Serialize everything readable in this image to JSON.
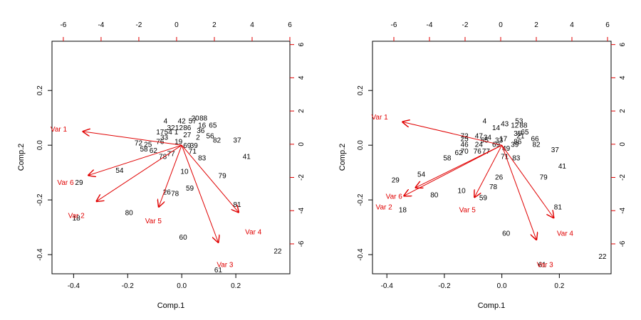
{
  "colors": {
    "axis": "#000000",
    "points": "#000000",
    "vectors": "#e00000"
  },
  "chart_data": [
    {
      "type": "scatter",
      "subtype": "biplot",
      "xlabel": "Comp.1",
      "ylabel": "Comp.2",
      "xlim": [
        -0.48,
        0.4
      ],
      "ylim": [
        -0.47,
        0.38
      ],
      "xticks": [
        -0.4,
        -0.2,
        0.0,
        0.2
      ],
      "yticks": [
        -0.4,
        -0.2,
        0.0,
        0.2
      ],
      "top_axis": {
        "ticks": [
          -6,
          -4,
          -2,
          0,
          2,
          4,
          6
        ],
        "lim": [
          -6.6,
          6.0
        ]
      },
      "right_axis": {
        "ticks": [
          -6,
          -4,
          -2,
          0,
          2,
          4,
          6
        ],
        "lim": [
          -7.8,
          6.2
        ]
      },
      "points": [
        {
          "label": "4",
          "x": -0.06,
          "y": 0.09
        },
        {
          "label": "42",
          "x": 0.0,
          "y": 0.09
        },
        {
          "label": "57",
          "x": 0.04,
          "y": 0.09
        },
        {
          "label": "20",
          "x": 0.05,
          "y": 0.1
        },
        {
          "label": "88",
          "x": 0.08,
          "y": 0.1
        },
        {
          "label": "16",
          "x": 0.075,
          "y": 0.075
        },
        {
          "label": "65",
          "x": 0.115,
          "y": 0.075
        },
        {
          "label": "32",
          "x": -0.04,
          "y": 0.065
        },
        {
          "label": "12",
          "x": -0.01,
          "y": 0.065
        },
        {
          "label": "86",
          "x": 0.02,
          "y": 0.065
        },
        {
          "label": "36",
          "x": 0.07,
          "y": 0.055
        },
        {
          "label": "17",
          "x": -0.08,
          "y": 0.05
        },
        {
          "label": "54",
          "x": -0.05,
          "y": 0.05
        },
        {
          "label": "1",
          "x": -0.02,
          "y": 0.05
        },
        {
          "label": "27",
          "x": 0.02,
          "y": 0.04
        },
        {
          "label": "56",
          "x": 0.105,
          "y": 0.035
        },
        {
          "label": "2",
          "x": 0.06,
          "y": 0.03
        },
        {
          "label": "33",
          "x": -0.065,
          "y": 0.03
        },
        {
          "label": "82",
          "x": 0.13,
          "y": 0.02
        },
        {
          "label": "37",
          "x": 0.205,
          "y": 0.02
        },
        {
          "label": "72",
          "x": -0.16,
          "y": 0.01
        },
        {
          "label": "25",
          "x": -0.125,
          "y": 0.005
        },
        {
          "label": "76",
          "x": -0.08,
          "y": 0.015
        },
        {
          "label": "19",
          "x": -0.012,
          "y": 0.015
        },
        {
          "label": "69",
          "x": 0.02,
          "y": 0.0
        },
        {
          "label": "39",
          "x": 0.045,
          "y": 0.0
        },
        {
          "label": "58",
          "x": -0.14,
          "y": -0.012
        },
        {
          "label": "62",
          "x": -0.105,
          "y": -0.018
        },
        {
          "label": "71",
          "x": 0.04,
          "y": -0.02
        },
        {
          "label": "78",
          "x": -0.07,
          "y": -0.04
        },
        {
          "label": "77",
          "x": -0.04,
          "y": -0.03
        },
        {
          "label": "41",
          "x": 0.24,
          "y": -0.04
        },
        {
          "label": "83",
          "x": 0.075,
          "y": -0.045
        },
        {
          "label": "54",
          "x": -0.23,
          "y": -0.09
        },
        {
          "label": "10",
          "x": 0.01,
          "y": -0.095
        },
        {
          "label": "79",
          "x": 0.15,
          "y": -0.11
        },
        {
          "label": "29",
          "x": -0.38,
          "y": -0.135
        },
        {
          "label": "59",
          "x": 0.03,
          "y": -0.155
        },
        {
          "label": "26",
          "x": -0.055,
          "y": -0.17
        },
        {
          "label": "78",
          "x": -0.025,
          "y": -0.175
        },
        {
          "label": "81",
          "x": 0.205,
          "y": -0.215
        },
        {
          "label": "80",
          "x": -0.195,
          "y": -0.245
        },
        {
          "label": "18",
          "x": -0.39,
          "y": -0.265
        },
        {
          "label": "60",
          "x": 0.005,
          "y": -0.335
        },
        {
          "label": "22",
          "x": 0.355,
          "y": -0.385
        },
        {
          "label": "61",
          "x": 0.135,
          "y": -0.455
        }
      ],
      "vectors": [
        {
          "label": "Var 1",
          "x": -0.365,
          "y": 0.05,
          "label_x": -0.455,
          "label_y": 0.06
        },
        {
          "label": "Var 2",
          "x": -0.315,
          "y": -0.205,
          "label_x": -0.39,
          "label_y": -0.255
        },
        {
          "label": "Var 3",
          "x": 0.135,
          "y": -0.355,
          "label_x": 0.16,
          "label_y": -0.435
        },
        {
          "label": "Var 4",
          "x": 0.21,
          "y": -0.245,
          "label_x": 0.265,
          "label_y": -0.315
        },
        {
          "label": "Var 5",
          "x": -0.085,
          "y": -0.225,
          "label_x": -0.105,
          "label_y": -0.275
        },
        {
          "label": "Var 6",
          "x": -0.345,
          "y": -0.11,
          "label_x": -0.43,
          "label_y": -0.135
        }
      ]
    },
    {
      "type": "scatter",
      "subtype": "biplot",
      "xlabel": "Comp.1",
      "ylabel": "Comp.2",
      "xlim": [
        -0.45,
        0.38
      ],
      "ylim": [
        -0.47,
        0.38
      ],
      "xticks": [
        -0.4,
        -0.2,
        0.0,
        0.2
      ],
      "yticks": [
        -0.4,
        -0.2,
        0.0,
        0.2
      ],
      "top_axis": {
        "ticks": [
          -6,
          -4,
          -2,
          0,
          2,
          4,
          6
        ],
        "lim": [
          -7.2,
          6.2
        ]
      },
      "right_axis": {
        "ticks": [
          -6,
          -4,
          -2,
          0,
          2,
          4,
          6
        ],
        "lim": [
          -7.8,
          6.2
        ]
      },
      "points": [
        {
          "label": "4",
          "x": -0.06,
          "y": 0.09
        },
        {
          "label": "53",
          "x": 0.06,
          "y": 0.09
        },
        {
          "label": "43",
          "x": 0.01,
          "y": 0.08
        },
        {
          "label": "12",
          "x": 0.045,
          "y": 0.075
        },
        {
          "label": "88",
          "x": 0.075,
          "y": 0.075
        },
        {
          "label": "14",
          "x": -0.02,
          "y": 0.065
        },
        {
          "label": "65",
          "x": 0.08,
          "y": 0.05
        },
        {
          "label": "35",
          "x": 0.055,
          "y": 0.045
        },
        {
          "label": "72",
          "x": -0.13,
          "y": 0.035
        },
        {
          "label": "47",
          "x": -0.08,
          "y": 0.035
        },
        {
          "label": "21",
          "x": 0.065,
          "y": 0.035
        },
        {
          "label": "25",
          "x": -0.13,
          "y": 0.025
        },
        {
          "label": "34",
          "x": -0.05,
          "y": 0.03
        },
        {
          "label": "17",
          "x": 0.005,
          "y": 0.025
        },
        {
          "label": "66",
          "x": 0.115,
          "y": 0.025
        },
        {
          "label": "55",
          "x": -0.06,
          "y": 0.02
        },
        {
          "label": "33",
          "x": -0.01,
          "y": 0.02
        },
        {
          "label": "86",
          "x": 0.055,
          "y": 0.015
        },
        {
          "label": "46",
          "x": -0.13,
          "y": 0.005
        },
        {
          "label": "24",
          "x": -0.08,
          "y": 0.005
        },
        {
          "label": "82",
          "x": 0.12,
          "y": 0.005
        },
        {
          "label": "69",
          "x": -0.02,
          "y": 0.005
        },
        {
          "label": "39",
          "x": 0.045,
          "y": 0.005
        },
        {
          "label": "49",
          "x": 0.015,
          "y": -0.01
        },
        {
          "label": "70",
          "x": -0.13,
          "y": -0.02
        },
        {
          "label": "76",
          "x": -0.085,
          "y": -0.02
        },
        {
          "label": "77",
          "x": -0.055,
          "y": -0.02
        },
        {
          "label": "62",
          "x": -0.15,
          "y": -0.025
        },
        {
          "label": "37",
          "x": 0.185,
          "y": -0.015
        },
        {
          "label": "71",
          "x": 0.01,
          "y": -0.04
        },
        {
          "label": "83",
          "x": 0.05,
          "y": -0.045
        },
        {
          "label": "58",
          "x": -0.19,
          "y": -0.045
        },
        {
          "label": "41",
          "x": 0.21,
          "y": -0.075
        },
        {
          "label": "54",
          "x": -0.28,
          "y": -0.105
        },
        {
          "label": "26",
          "x": -0.01,
          "y": -0.115
        },
        {
          "label": "79",
          "x": 0.145,
          "y": -0.115
        },
        {
          "label": "29",
          "x": -0.37,
          "y": -0.125
        },
        {
          "label": "78",
          "x": -0.03,
          "y": -0.15
        },
        {
          "label": "10",
          "x": -0.14,
          "y": -0.165
        },
        {
          "label": "80",
          "x": -0.235,
          "y": -0.18
        },
        {
          "label": "59",
          "x": -0.065,
          "y": -0.19
        },
        {
          "label": "81",
          "x": 0.195,
          "y": -0.225
        },
        {
          "label": "18",
          "x": -0.345,
          "y": -0.235
        },
        {
          "label": "60",
          "x": 0.015,
          "y": -0.32
        },
        {
          "label": "22",
          "x": 0.35,
          "y": -0.405
        },
        {
          "label": "61",
          "x": 0.14,
          "y": -0.435
        }
      ],
      "vectors": [
        {
          "label": "Var 1",
          "x": -0.345,
          "y": 0.085,
          "label_x": -0.425,
          "label_y": 0.105
        },
        {
          "label": "Var 2",
          "x": -0.3,
          "y": -0.155,
          "label_x": -0.41,
          "label_y": -0.225
        },
        {
          "label": "Var 3",
          "x": 0.12,
          "y": -0.345,
          "label_x": 0.15,
          "label_y": -0.435
        },
        {
          "label": "Var 4",
          "x": 0.18,
          "y": -0.265,
          "label_x": 0.22,
          "label_y": -0.32
        },
        {
          "label": "Var 5",
          "x": -0.095,
          "y": -0.19,
          "label_x": -0.12,
          "label_y": -0.235
        },
        {
          "label": "Var 6",
          "x": -0.34,
          "y": -0.185,
          "label_x": -0.375,
          "label_y": -0.185
        }
      ]
    }
  ]
}
